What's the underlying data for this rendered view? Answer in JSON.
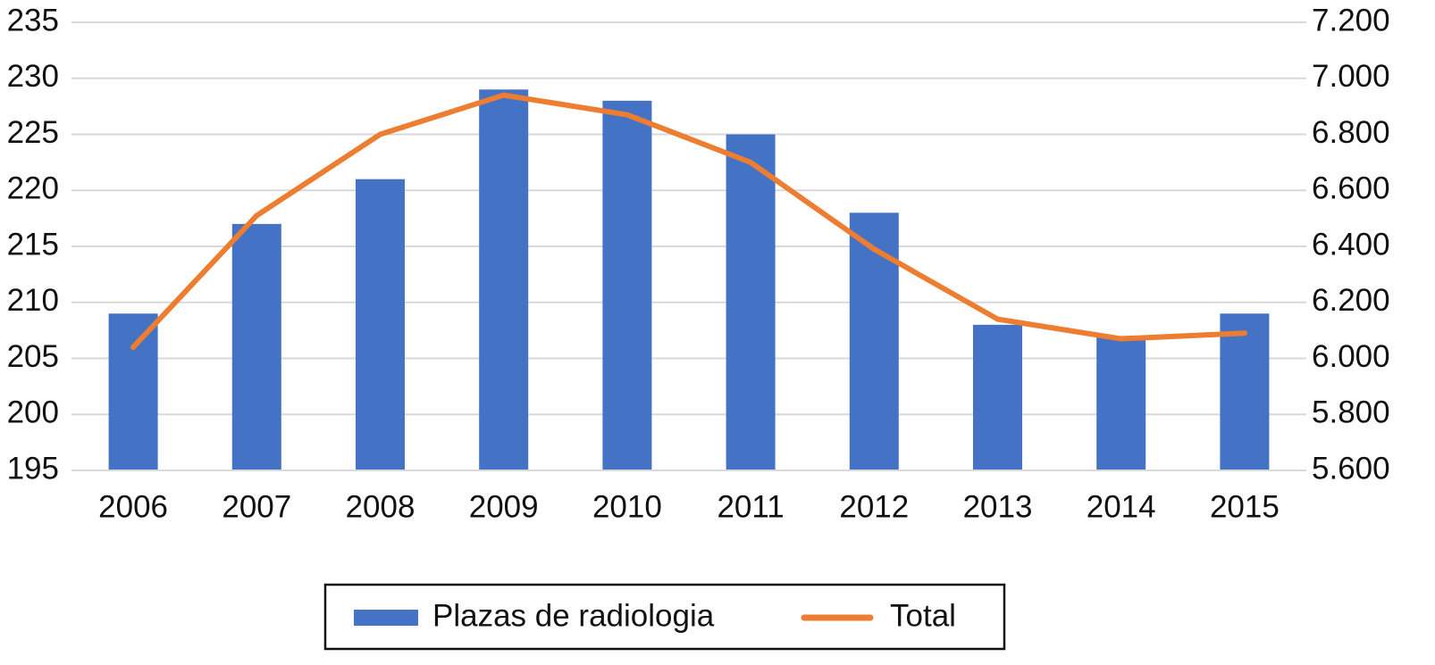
{
  "chart_data": {
    "type": "bar",
    "categories": [
      "2006",
      "2007",
      "2008",
      "2009",
      "2010",
      "2011",
      "2012",
      "2013",
      "2014",
      "2015"
    ],
    "series": [
      {
        "name": "Plazas de radiologia",
        "type": "bar",
        "axis": "left",
        "color": "#4472C4",
        "values": [
          209,
          217,
          221,
          229,
          228,
          225,
          218,
          208,
          207,
          209
        ]
      },
      {
        "name": "Total",
        "type": "line",
        "axis": "right",
        "color": "#ED7D31",
        "values": [
          6040,
          6510,
          6800,
          6940,
          6870,
          6700,
          6390,
          6140,
          6070,
          6090
        ]
      }
    ],
    "y_left": {
      "lim": [
        195,
        235
      ],
      "ticks": [
        "195",
        "200",
        "205",
        "210",
        "215",
        "220",
        "225",
        "230",
        "235"
      ]
    },
    "y_right": {
      "lim": [
        5600,
        7200
      ],
      "ticks": [
        "5.600",
        "5.800",
        "6.000",
        "6.200",
        "6.400",
        "6.600",
        "6.800",
        "7.000",
        "7.200"
      ]
    },
    "grid": true,
    "legend": "bottom",
    "title": "",
    "xlabel": "",
    "ylabel": ""
  }
}
